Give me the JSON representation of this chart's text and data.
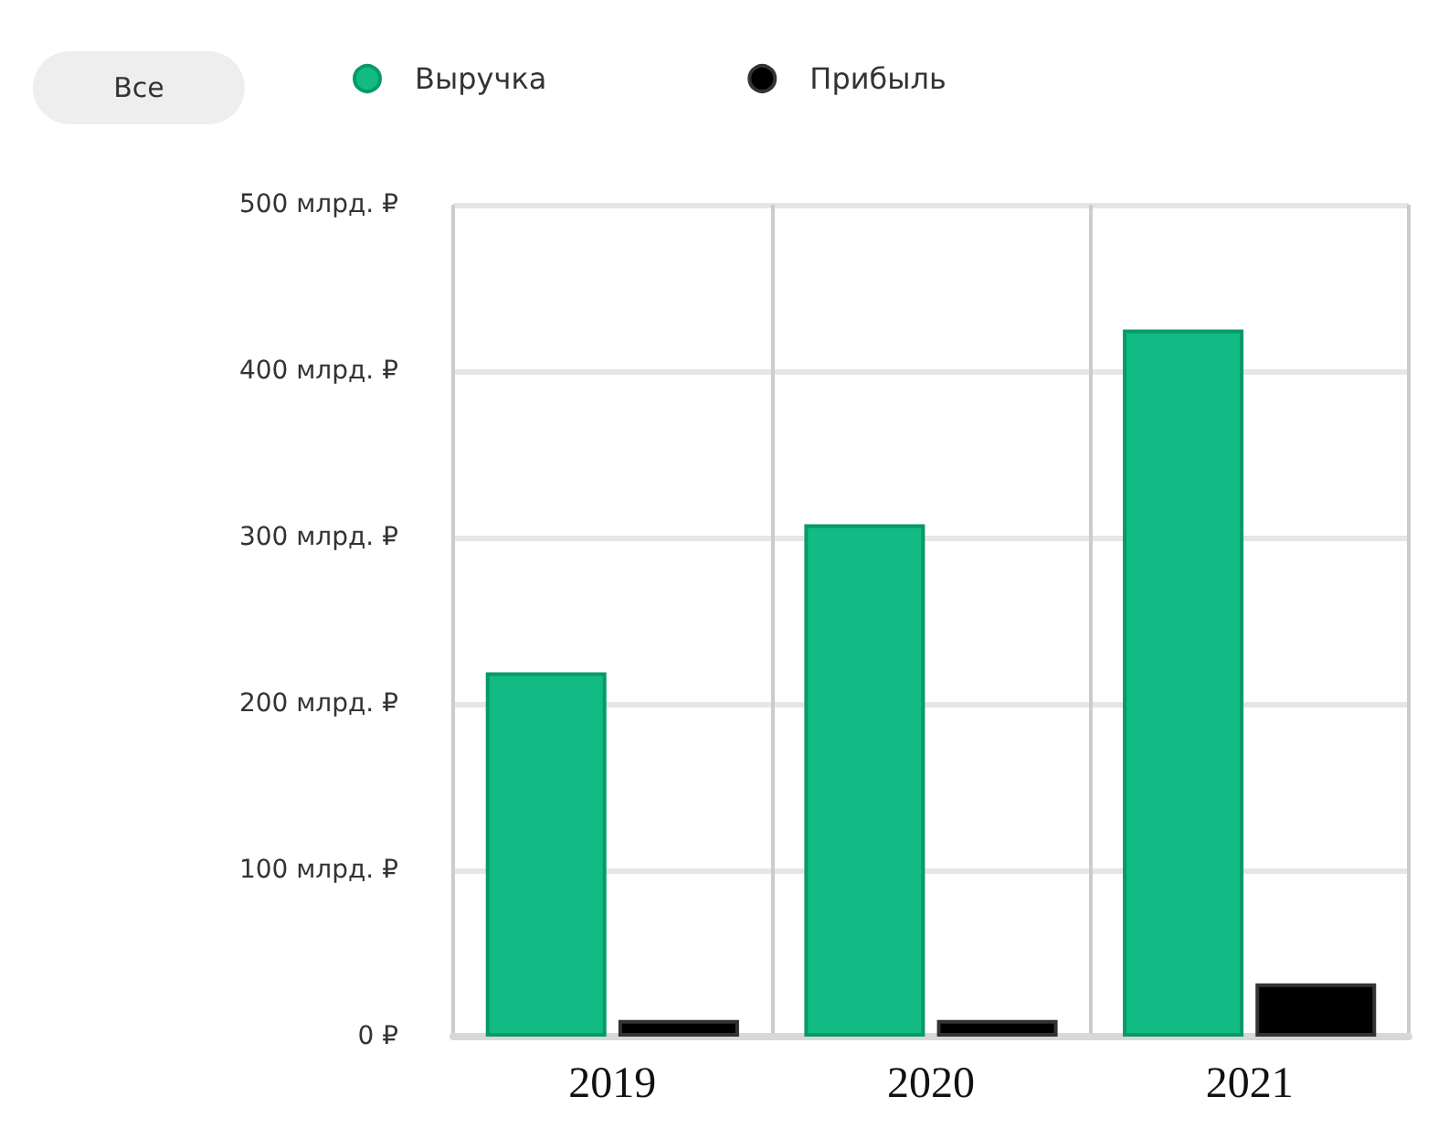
{
  "chart_data": {
    "type": "bar",
    "categories": [
      "2019",
      "2020",
      "2021"
    ],
    "series": [
      {
        "name": "Выручка",
        "color": "#12bb84",
        "values": [
          219,
          308,
          425
        ]
      },
      {
        "name": "Прибыль",
        "color": "#000000",
        "values": [
          10,
          10,
          32
        ]
      }
    ],
    "ylim": [
      0,
      500
    ],
    "yticks": [
      {
        "value": 0,
        "label": "0 ₽"
      },
      {
        "value": 100,
        "label": "100 млрд. ₽"
      },
      {
        "value": 200,
        "label": "200 млрд. ₽"
      },
      {
        "value": 300,
        "label": "300 млрд. ₽"
      },
      {
        "value": 400,
        "label": "400 млрд. ₽"
      },
      {
        "value": 500,
        "label": "500 млрд. ₽"
      }
    ],
    "grid": true,
    "legend": "top left",
    "annotations": [
      "Все"
    ]
  }
}
